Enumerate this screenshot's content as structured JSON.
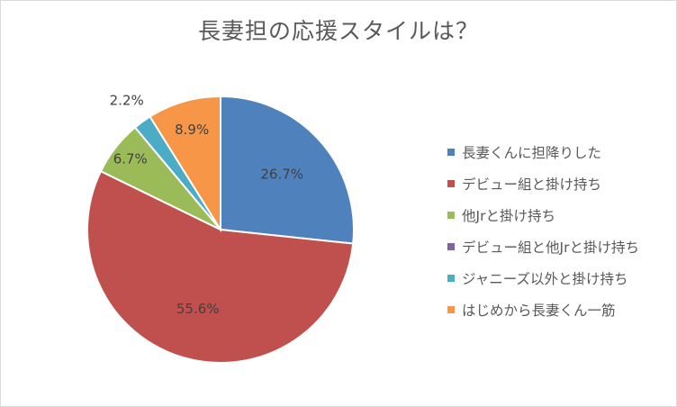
{
  "chart_data": {
    "type": "pie",
    "title": "長妻担の応援スタイルは？",
    "categories": [
      "長妻くんに担降りした",
      "デビュー組と掛け持ち",
      "他Jrと掛け持ち",
      "デビュー組と他Jrと掛け持ち",
      "ジャニーズ以外と掛け持ち",
      "はじめから長妻くん一筋"
    ],
    "values": [
      26.7,
      55.6,
      6.7,
      0.0,
      2.2,
      8.9
    ],
    "data_labels": [
      "26.7%",
      "55.6%",
      "6.7%",
      "",
      "2.2%",
      "8.9%"
    ],
    "colors": [
      "#4f81bd",
      "#c0504d",
      "#9bbb59",
      "#8064a2",
      "#4bacc6",
      "#f79646"
    ],
    "legend_position": "right",
    "start_angle": "12 o'clock",
    "direction": "clockwise"
  }
}
